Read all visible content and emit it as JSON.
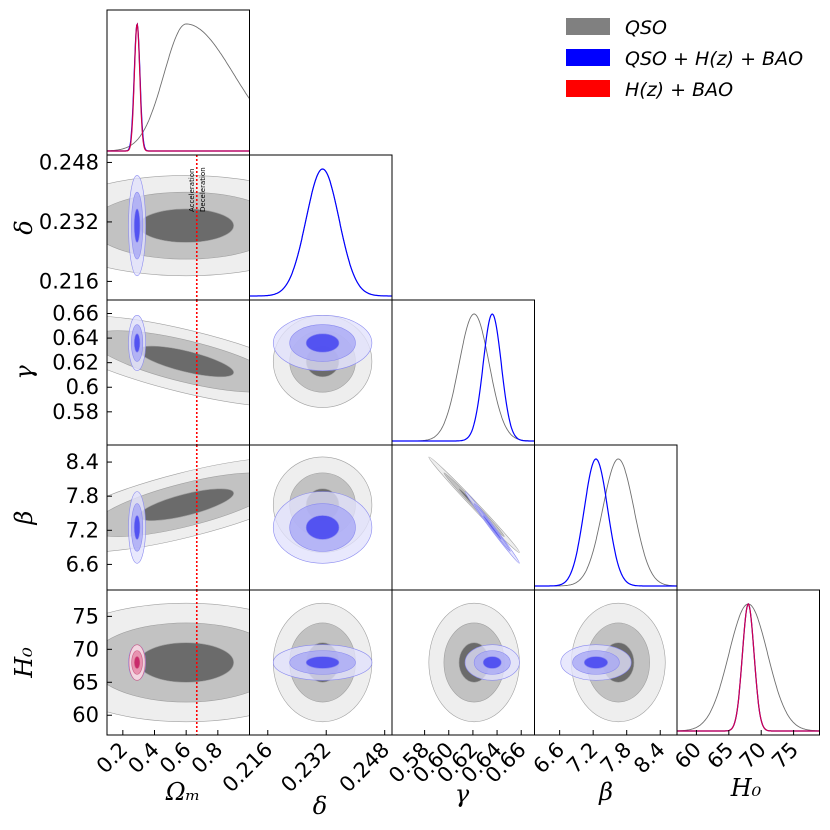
{
  "chart_data": {
    "type": "corner",
    "parameters": [
      "Ω_m",
      "δ",
      "γ",
      "β",
      "H_0"
    ],
    "axis_labels": {
      "x": [
        "Ωₘ",
        "δ",
        "γ",
        "β",
        "H₀"
      ],
      "y": [
        "δ",
        "γ",
        "β",
        "H₀"
      ]
    },
    "ranges": {
      "Om": [
        0.1,
        1.0
      ],
      "delta": [
        0.211,
        0.25
      ],
      "gamma": [
        0.553,
        0.671
      ],
      "beta": [
        6.15,
        8.7
      ],
      "H0": [
        57.0,
        79.0
      ]
    },
    "ticks": {
      "Om": [
        0.2,
        0.4,
        0.6,
        0.8
      ],
      "delta": [
        0.216,
        0.232,
        0.248
      ],
      "gamma": [
        0.58,
        0.6,
        0.62,
        0.64,
        0.66
      ],
      "beta": [
        6.6,
        7.2,
        7.8,
        8.4
      ],
      "H0_y": [
        60,
        65,
        70,
        75
      ],
      "H0_x": [
        60,
        65,
        70,
        75
      ]
    },
    "tick_labels": {
      "Om": [
        "0.2",
        "0.4",
        "0.6",
        "0.8"
      ],
      "delta_y": [
        "0.216",
        "0.232",
        "0.248"
      ],
      "delta_x": [
        "0.216",
        "0.232",
        "0.248"
      ],
      "gamma_y": [
        "0.58",
        "0.6",
        "0.62",
        "0.64",
        "0.66"
      ],
      "gamma_x": [
        "0.58",
        "0.60",
        "0.62",
        "0.64",
        "0.66"
      ],
      "beta": [
        "6.6",
        "7.2",
        "7.8",
        "8.4"
      ],
      "H0_y": [
        "60",
        "65",
        "70",
        "75"
      ],
      "H0_x": [
        "60",
        "65",
        "70",
        "75"
      ]
    },
    "legend": [
      {
        "label": "QSO",
        "color": "#808080"
      },
      {
        "label": "QSO + H(z) + BAO",
        "color": "#0000ff"
      },
      {
        "label": "H(z) + BAO",
        "color": "#ff0000"
      }
    ],
    "legend_position": "top-right",
    "transition_line": {
      "parameter": "Ω_m",
      "value": 0.667,
      "color": "#ff0000",
      "labels": [
        "Acceleration",
        "Deceleration"
      ]
    },
    "series": [
      {
        "name": "QSO",
        "color": "#808080",
        "means": {
          "Om": 0.6,
          "delta": 0.231,
          "gamma": 0.621,
          "beta": 7.65,
          "H0": 68.0
        },
        "sigmas": {
          "Om": 0.3,
          "delta": 0.0045,
          "gamma": 0.0125,
          "beta": 0.28,
          "H0": 3.0
        },
        "correlations": {
          "Om-gamma": -0.72,
          "Om-beta": 0.72,
          "gamma-beta": -0.995
        }
      },
      {
        "name": "QSO + H(z) + BAO",
        "color": "#0000ff",
        "means": {
          "Om": 0.29,
          "delta": 0.231,
          "gamma": 0.636,
          "beta": 7.25,
          "H0": 68.0
        },
        "sigmas": {
          "Om": 0.018,
          "delta": 0.0045,
          "gamma": 0.0075,
          "beta": 0.21,
          "H0": 0.9
        },
        "correlations": {
          "gamma-beta": -0.995
        }
      },
      {
        "name": "H(z) + BAO",
        "color": "#ff0000",
        "means": {
          "Om": 0.29,
          "H0": 68.0
        },
        "sigmas": {
          "Om": 0.017,
          "H0": 0.9
        },
        "correlations": {}
      }
    ]
  }
}
